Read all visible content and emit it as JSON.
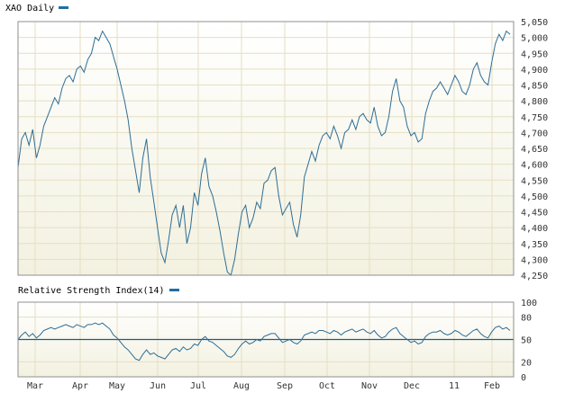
{
  "colors": {
    "line": "#2e6e96",
    "title_dash": "#1f6fa3",
    "panel_bg_top": "#ffffff",
    "panel_bg_bottom": "#f3f1e0",
    "grid": "#e4dfc3",
    "frame": "#8f8f8f",
    "rsi_reference": "#1d5c80"
  },
  "chart_data": [
    {
      "type": "line",
      "title": "XAO Daily",
      "xlabel": "",
      "ylabel": "",
      "ylim": [
        4250,
        5050
      ],
      "yticks": [
        "5,050",
        "5,000",
        "4,950",
        "4,900",
        "4,850",
        "4,800",
        "4,750",
        "4,700",
        "4,650",
        "4,600",
        "4,550",
        "4,500",
        "4,450",
        "4,400",
        "4,350",
        "4,300",
        "4,250"
      ],
      "xticks": [
        "Mar",
        "Apr",
        "May",
        "Jun",
        "Jul",
        "Aug",
        "Sep",
        "Oct",
        "Nov",
        "Dec",
        "11",
        "Feb"
      ],
      "grid": true,
      "series": [
        {
          "values": [
            4590,
            4680,
            4700,
            4660,
            4710,
            4620,
            4660,
            4720,
            4750,
            4780,
            4810,
            4790,
            4840,
            4870,
            4880,
            4860,
            4900,
            4910,
            4890,
            4930,
            4950,
            5000,
            4990,
            5020,
            5000,
            4980,
            4940,
            4900,
            4850,
            4800,
            4740,
            4650,
            4580,
            4510,
            4620,
            4680,
            4560,
            4480,
            4400,
            4320,
            4290,
            4360,
            4440,
            4470,
            4400,
            4470,
            4350,
            4400,
            4510,
            4470,
            4570,
            4620,
            4530,
            4500,
            4450,
            4390,
            4320,
            4260,
            4250,
            4300,
            4380,
            4450,
            4470,
            4400,
            4430,
            4480,
            4460,
            4540,
            4550,
            4580,
            4590,
            4500,
            4440,
            4460,
            4480,
            4410,
            4370,
            4440,
            4560,
            4600,
            4640,
            4610,
            4660,
            4690,
            4700,
            4680,
            4720,
            4690,
            4650,
            4700,
            4710,
            4740,
            4710,
            4750,
            4760,
            4740,
            4730,
            4780,
            4720,
            4690,
            4700,
            4750,
            4830,
            4870,
            4800,
            4780,
            4720,
            4690,
            4700,
            4670,
            4680,
            4760,
            4800,
            4830,
            4840,
            4860,
            4840,
            4820,
            4850,
            4880,
            4860,
            4830,
            4820,
            4850,
            4900,
            4920,
            4880,
            4860,
            4850,
            4920,
            4980,
            5010,
            4990,
            5020,
            5010
          ]
        }
      ]
    },
    {
      "type": "line",
      "title": "Relative Strength Index(14)",
      "xlabel": "",
      "ylabel": "",
      "ylim": [
        0,
        100
      ],
      "yticks": [
        "100",
        "80",
        "50",
        "20",
        "0"
      ],
      "reference_line": 50,
      "grid": true,
      "series": [
        {
          "values": [
            50,
            56,
            60,
            54,
            58,
            52,
            56,
            62,
            64,
            66,
            64,
            66,
            68,
            70,
            68,
            66,
            70,
            68,
            66,
            70,
            70,
            72,
            70,
            72,
            68,
            64,
            56,
            52,
            46,
            40,
            36,
            30,
            24,
            22,
            30,
            36,
            30,
            32,
            28,
            26,
            24,
            30,
            36,
            38,
            34,
            40,
            36,
            38,
            44,
            42,
            50,
            54,
            48,
            46,
            42,
            38,
            34,
            28,
            26,
            30,
            38,
            44,
            48,
            44,
            46,
            50,
            48,
            54,
            56,
            58,
            58,
            52,
            46,
            48,
            50,
            46,
            44,
            48,
            56,
            58,
            60,
            58,
            62,
            62,
            60,
            58,
            62,
            60,
            56,
            60,
            62,
            64,
            60,
            62,
            64,
            60,
            58,
            62,
            56,
            52,
            54,
            60,
            64,
            66,
            58,
            54,
            50,
            46,
            48,
            44,
            46,
            54,
            58,
            60,
            60,
            62,
            58,
            56,
            58,
            62,
            60,
            56,
            54,
            58,
            62,
            64,
            58,
            54,
            52,
            60,
            66,
            68,
            64,
            66,
            62
          ]
        }
      ]
    }
  ]
}
